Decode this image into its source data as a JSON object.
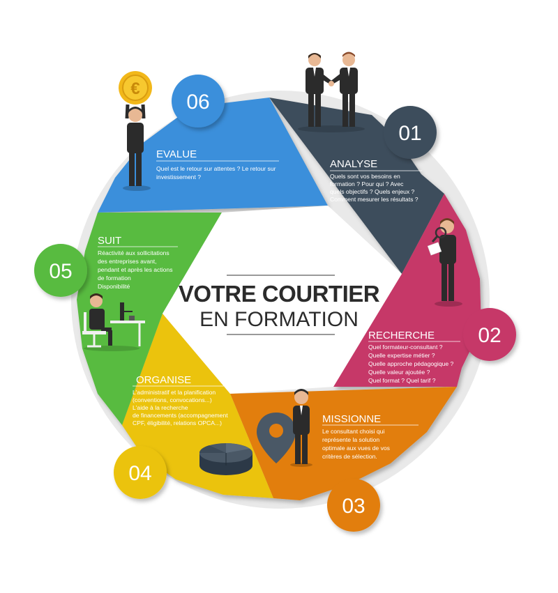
{
  "title": {
    "line1": "VOTRE COURTIER",
    "line2": "EN FORMATION"
  },
  "colors": {
    "analyse": "#3d4d5b",
    "recherche": "#c63767",
    "missionne": "#e27e10",
    "organise": "#ebc30a",
    "suit": "#59bb40",
    "evalue": "#3a8fdb",
    "suit_text": "#ffffff",
    "organise_text": "#fff5c0"
  },
  "steps": [
    {
      "number": "01",
      "title": "ANALYSE",
      "lines": [
        "Quels sont vos besoins en",
        "formation ? Pour qui ? Avec",
        "quels objectifs ? Quels enjeux ?",
        "Comment mesurer les résultats ?"
      ]
    },
    {
      "number": "02",
      "title": "RECHERCHE",
      "lines": [
        "Quel formateur-consultant ?",
        "Quelle expertise métier ?",
        "Quelle approche pédagogique ?",
        "Quelle valeur ajoutée ?",
        "Quel format ? Quel tarif ?"
      ]
    },
    {
      "number": "03",
      "title": "MISSIONNE",
      "lines": [
        "Le consultant choisi qui",
        "représente la solution",
        "optimale aux vues de vos",
        "critères de sélection."
      ]
    },
    {
      "number": "04",
      "title": "ORGANISE",
      "lines": [
        "L'administratif et la planification",
        "(conventions, convocations...)",
        "L'aide à la recherche",
        "de financements (accompagnement",
        "CPF, éligibilité, relations OPCA...)"
      ]
    },
    {
      "number": "05",
      "title": "SUIT",
      "lines": [
        "Réactivité aux sollicitations",
        "des entreprises avant,",
        "pendant et après les actions",
        "de formation",
        "Disponibilité"
      ]
    },
    {
      "number": "06",
      "title": "EVALUE",
      "lines": [
        "Quel est le retour sur attentes ? Le retour sur",
        "investissement ?"
      ]
    }
  ],
  "icons": [
    "handshake-icon",
    "magnifier-person-icon",
    "map-pin-person-icon",
    "pie-chart-icon",
    "desk-person-icon",
    "euro-coin-person-icon"
  ]
}
